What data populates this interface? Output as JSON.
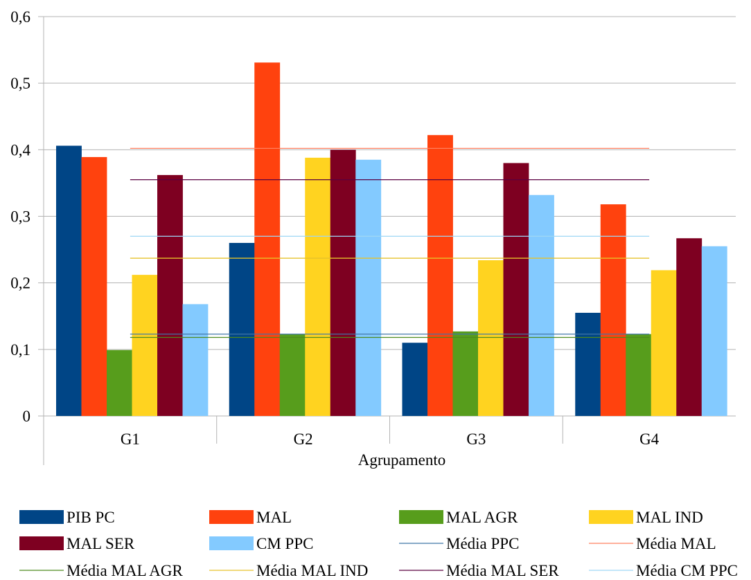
{
  "chart_data": {
    "type": "bar",
    "title": "",
    "xlabel": "Agrupamento",
    "ylabel": "",
    "categories": [
      "G1",
      "G2",
      "G3",
      "G4"
    ],
    "ylim": [
      0,
      0.6
    ],
    "yticks": [
      0,
      0.1,
      0.2,
      0.3,
      0.4,
      0.5,
      0.6
    ],
    "ytick_labels": [
      "0",
      "0,1",
      "0,2",
      "0,3",
      "0,4",
      "0,5",
      "0,6"
    ],
    "grid": true,
    "legend_position": "bottom",
    "series": [
      {
        "name": "PIB PC",
        "color": "#004586",
        "values": [
          0.406,
          0.26,
          0.11,
          0.155
        ]
      },
      {
        "name": "MAL",
        "color": "#ff420e",
        "values": [
          0.389,
          0.531,
          0.422,
          0.318
        ]
      },
      {
        "name": "MAL AGR",
        "color": "#579d1c",
        "values": [
          0.099,
          0.123,
          0.127,
          0.123
        ]
      },
      {
        "name": "MAL IND",
        "color": "#ffd320",
        "values": [
          0.212,
          0.388,
          0.234,
          0.219
        ]
      },
      {
        "name": "MAL SER",
        "color": "#7e0021",
        "values": [
          0.362,
          0.4,
          0.38,
          0.267
        ]
      },
      {
        "name": "CM PPC",
        "color": "#83caff",
        "values": [
          0.168,
          0.385,
          0.332,
          0.255
        ]
      }
    ],
    "reference_lines": [
      {
        "name": "Média PPC",
        "color": "#3f76a8",
        "value": 0.123
      },
      {
        "name": "Média MAL",
        "color": "#ff7f5e",
        "value": 0.402
      },
      {
        "name": "Média MAL AGR",
        "color": "#4e8b1e",
        "value": 0.118
      },
      {
        "name": "Média MAL IND",
        "color": "#e6c22a",
        "value": 0.237
      },
      {
        "name": "Média MAL SER",
        "color": "#5a0040",
        "value": 0.355
      },
      {
        "name": "Média CM PPC",
        "color": "#9fd7f5",
        "value": 0.27
      }
    ]
  }
}
